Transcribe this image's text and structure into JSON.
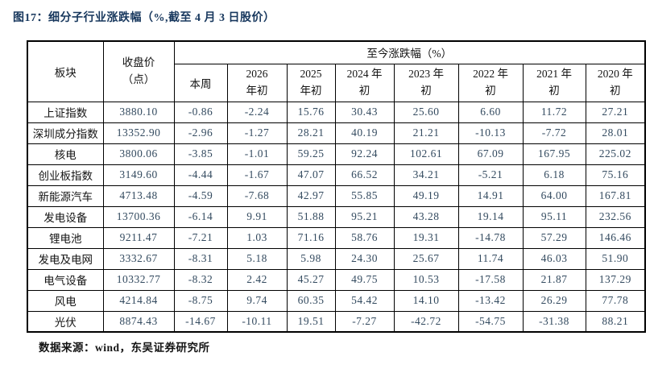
{
  "figure": {
    "title": "图17：细分子行业涨跌幅（%,截至 4 月 3 日股价）",
    "source": "数据来源：wind，东吴证券研究所"
  },
  "colors": {
    "title": "#17375D",
    "number_text": "#334A5F",
    "header_text": "#141414",
    "border": "#000000",
    "background": "#FFFFFF"
  },
  "table": {
    "col_sector": "板块",
    "col_close_line1": "收盘价",
    "col_close_line2": "（点）",
    "group_header": "至今涨跌幅（%）",
    "sub_headers": [
      {
        "line1": "本周",
        "line2": ""
      },
      {
        "line1": "2026",
        "line2": "年初"
      },
      {
        "line1": "2025",
        "line2": "年初"
      },
      {
        "line1": "2024 年",
        "line2": "初"
      },
      {
        "line1": "2023 年",
        "line2": "初"
      },
      {
        "line1": "2022 年",
        "line2": "初"
      },
      {
        "line1": "2021 年",
        "line2": "初"
      },
      {
        "line1": "2020 年",
        "line2": "初"
      }
    ],
    "rows": [
      {
        "sector": "上证指数",
        "close": "3880.10",
        "values": [
          "-0.86",
          "-2.24",
          "15.76",
          "30.43",
          "25.60",
          "6.60",
          "11.72",
          "27.21"
        ]
      },
      {
        "sector": "深圳成分指数",
        "close": "13352.90",
        "values": [
          "-2.96",
          "-1.27",
          "28.21",
          "40.19",
          "21.21",
          "-10.13",
          "-7.72",
          "28.01"
        ]
      },
      {
        "sector": "核电",
        "close": "3800.06",
        "values": [
          "-3.85",
          "-1.01",
          "59.25",
          "92.24",
          "102.61",
          "67.09",
          "167.95",
          "225.02"
        ]
      },
      {
        "sector": "创业板指数",
        "close": "3149.60",
        "values": [
          "-4.44",
          "-1.67",
          "47.07",
          "66.52",
          "34.21",
          "-5.21",
          "6.18",
          "75.16"
        ]
      },
      {
        "sector": "新能源汽车",
        "close": "4713.48",
        "values": [
          "-4.59",
          "-7.68",
          "42.97",
          "55.85",
          "49.19",
          "14.91",
          "64.00",
          "167.81"
        ]
      },
      {
        "sector": "发电设备",
        "close": "13700.36",
        "values": [
          "-6.14",
          "9.91",
          "51.88",
          "95.21",
          "43.28",
          "19.14",
          "95.11",
          "232.56"
        ]
      },
      {
        "sector": "锂电池",
        "close": "9211.47",
        "values": [
          "-7.21",
          "1.03",
          "71.16",
          "58.76",
          "19.31",
          "-14.78",
          "57.29",
          "146.46"
        ]
      },
      {
        "sector": "发电及电网",
        "close": "3332.67",
        "values": [
          "-8.31",
          "5.18",
          "5.98",
          "24.30",
          "25.67",
          "11.74",
          "46.03",
          "51.90"
        ]
      },
      {
        "sector": "电气设备",
        "close": "10332.77",
        "values": [
          "-8.32",
          "2.42",
          "45.27",
          "49.75",
          "10.53",
          "-17.58",
          "21.87",
          "137.29"
        ]
      },
      {
        "sector": "风电",
        "close": "4214.84",
        "values": [
          "-8.75",
          "9.74",
          "60.35",
          "54.42",
          "14.10",
          "-13.42",
          "26.29",
          "77.78"
        ]
      },
      {
        "sector": "光伏",
        "close": "8874.43",
        "values": [
          "-14.67",
          "-10.11",
          "19.51",
          "-7.27",
          "-42.72",
          "-54.75",
          "-31.38",
          "88.21"
        ]
      }
    ]
  },
  "chart_data": {
    "type": "table",
    "title": "图17：细分子行业涨跌幅（%,截至 4 月 3 日股价）",
    "source": "数据来源：wind，东吴证券研究所",
    "group_header": "至今涨跌幅（%）",
    "columns": [
      "板块",
      "收盘价（点）",
      "本周",
      "2026 年初",
      "2025 年初",
      "2024 年初",
      "2023 年初",
      "2022 年初",
      "2021 年初",
      "2020 年初"
    ],
    "rows": [
      [
        "上证指数",
        3880.1,
        -0.86,
        -2.24,
        15.76,
        30.43,
        25.6,
        6.6,
        11.72,
        27.21
      ],
      [
        "深圳成分指数",
        13352.9,
        -2.96,
        -1.27,
        28.21,
        40.19,
        21.21,
        -10.13,
        -7.72,
        28.01
      ],
      [
        "核电",
        3800.06,
        -3.85,
        -1.01,
        59.25,
        92.24,
        102.61,
        67.09,
        167.95,
        225.02
      ],
      [
        "创业板指数",
        3149.6,
        -4.44,
        -1.67,
        47.07,
        66.52,
        34.21,
        -5.21,
        6.18,
        75.16
      ],
      [
        "新能源汽车",
        4713.48,
        -4.59,
        -7.68,
        42.97,
        55.85,
        49.19,
        14.91,
        64.0,
        167.81
      ],
      [
        "发电设备",
        13700.36,
        -6.14,
        9.91,
        51.88,
        95.21,
        43.28,
        19.14,
        95.11,
        232.56
      ],
      [
        "锂电池",
        9211.47,
        -7.21,
        1.03,
        71.16,
        58.76,
        19.31,
        -14.78,
        57.29,
        146.46
      ],
      [
        "发电及电网",
        3332.67,
        -8.31,
        5.18,
        5.98,
        24.3,
        25.67,
        11.74,
        46.03,
        51.9
      ],
      [
        "电气设备",
        10332.77,
        -8.32,
        2.42,
        45.27,
        49.75,
        10.53,
        -17.58,
        21.87,
        137.29
      ],
      [
        "风电",
        4214.84,
        -8.75,
        9.74,
        60.35,
        54.42,
        14.1,
        -13.42,
        26.29,
        77.78
      ],
      [
        "光伏",
        8874.43,
        -14.67,
        -10.11,
        19.51,
        -7.27,
        -42.72,
        -54.75,
        -31.38,
        88.21
      ]
    ]
  }
}
